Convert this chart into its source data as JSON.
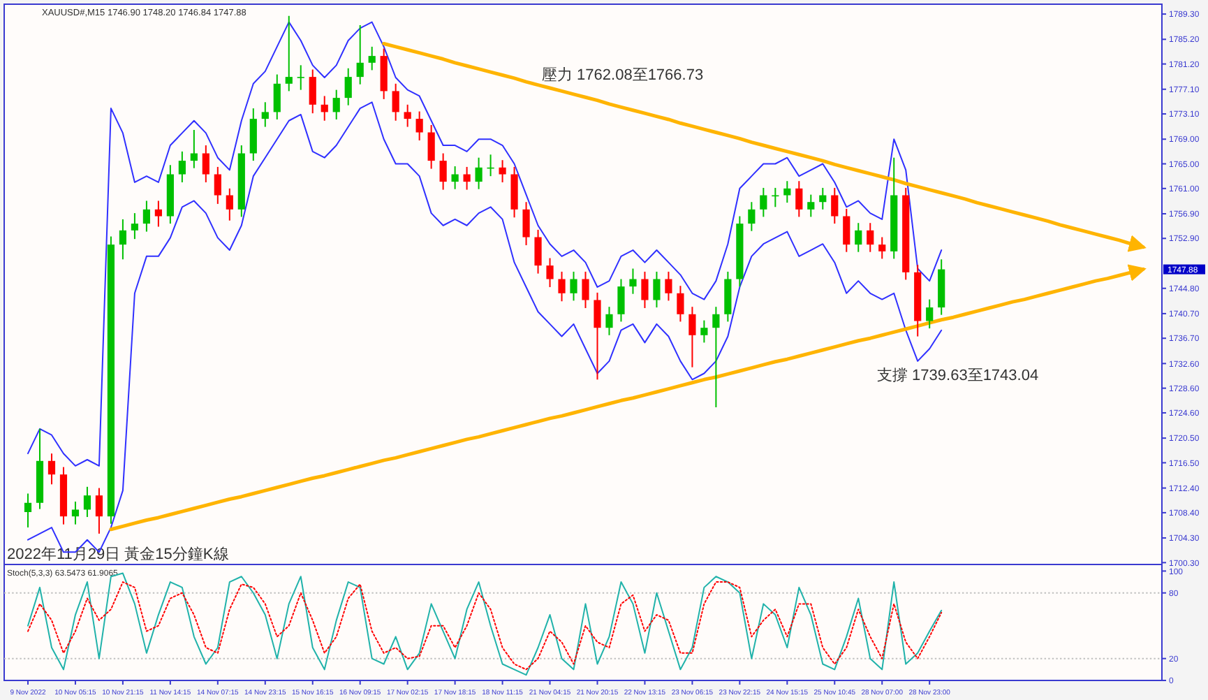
{
  "chart_data": [
    {
      "type": "candlestick",
      "title": "2022年11月29日 黃金15分鐘K線",
      "annotations": [
        "XAUUSD#,M15 1746.90 1748.20 1746.84 1747.88",
        "壓力 1762.08至1766.73",
        "支撐 1739.63至1743.04",
        "1747.88"
      ],
      "categories": [
        null,
        null,
        null,
        null,
        null,
        null,
        null,
        null,
        null,
        null,
        null,
        null,
        null,
        null,
        null,
        null,
        null,
        null,
        null,
        null,
        null,
        null,
        null,
        null,
        null,
        null,
        null,
        null,
        null,
        null,
        null,
        null,
        null,
        null,
        null,
        null,
        null,
        null,
        null,
        null,
        null,
        null,
        null,
        null,
        null,
        null,
        null,
        null,
        null,
        null,
        null,
        null,
        null,
        null,
        null,
        null,
        null,
        null,
        null,
        null,
        null,
        null,
        null,
        null,
        null,
        null,
        null,
        null,
        null,
        null,
        null,
        null,
        null,
        null,
        null,
        null,
        null,
        null,
        null,
        null,
        null,
        null,
        null,
        null,
        null,
        null,
        null,
        null,
        null,
        null,
        null,
        null,
        null,
        null,
        null,
        null
      ],
      "ohlc": [
        [
          1708.5,
          1711.5,
          1706.0,
          1710.0
        ],
        [
          1710.0,
          1722.0,
          1709.0,
          1716.8
        ],
        [
          1716.8,
          1718.0,
          1713.0,
          1714.6
        ],
        [
          1714.6,
          1715.8,
          1706.5,
          1707.8
        ],
        [
          1707.8,
          1710.2,
          1706.5,
          1708.9
        ],
        [
          1708.9,
          1712.6,
          1707.7,
          1711.2
        ],
        [
          1711.2,
          1712.4,
          1705.0,
          1707.8
        ],
        [
          1707.8,
          1753.2,
          1706.6,
          1751.9
        ],
        [
          1751.9,
          1756.0,
          1749.5,
          1754.2
        ],
        [
          1754.2,
          1757.0,
          1752.8,
          1755.3
        ],
        [
          1755.3,
          1759.0,
          1754.0,
          1757.6
        ],
        [
          1757.6,
          1759.0,
          1754.8,
          1756.5
        ],
        [
          1756.5,
          1764.8,
          1755.3,
          1763.3
        ],
        [
          1763.3,
          1767.0,
          1762.0,
          1765.5
        ],
        [
          1765.5,
          1770.5,
          1764.3,
          1766.7
        ],
        [
          1766.7,
          1768.0,
          1762.0,
          1763.3
        ],
        [
          1763.3,
          1764.5,
          1758.5,
          1759.9
        ],
        [
          1759.9,
          1761.0,
          1755.8,
          1757.6
        ],
        [
          1757.6,
          1768.0,
          1756.4,
          1766.7
        ],
        [
          1766.7,
          1774.0,
          1765.5,
          1772.3
        ],
        [
          1772.3,
          1775.0,
          1771.0,
          1773.4
        ],
        [
          1773.4,
          1779.5,
          1772.2,
          1778.0
        ],
        [
          1778.0,
          1789.0,
          1776.8,
          1779.1
        ],
        [
          1779.1,
          1781.0,
          1777.0,
          1779.1
        ],
        [
          1779.1,
          1780.3,
          1773.2,
          1774.6
        ],
        [
          1774.6,
          1776.0,
          1772.0,
          1773.4
        ],
        [
          1773.4,
          1777.0,
          1772.2,
          1775.7
        ],
        [
          1775.7,
          1780.5,
          1774.5,
          1779.1
        ],
        [
          1779.1,
          1787.5,
          1777.9,
          1781.4
        ],
        [
          1781.4,
          1784.0,
          1780.2,
          1782.5
        ],
        [
          1782.5,
          1783.7,
          1775.5,
          1776.8
        ],
        [
          1776.8,
          1778.0,
          1772.0,
          1773.4
        ],
        [
          1773.4,
          1774.6,
          1771.0,
          1772.3
        ],
        [
          1772.3,
          1773.5,
          1768.8,
          1770.1
        ],
        [
          1770.1,
          1771.3,
          1764.2,
          1765.5
        ],
        [
          1765.5,
          1766.7,
          1760.8,
          1762.1
        ],
        [
          1762.1,
          1764.6,
          1760.9,
          1763.3
        ],
        [
          1763.3,
          1764.5,
          1760.8,
          1762.1
        ],
        [
          1762.1,
          1766.0,
          1760.9,
          1764.4
        ],
        [
          1764.4,
          1766.5,
          1763.0,
          1764.4
        ],
        [
          1764.4,
          1765.6,
          1762.0,
          1763.3
        ],
        [
          1763.3,
          1764.5,
          1756.3,
          1757.6
        ],
        [
          1757.6,
          1758.8,
          1751.8,
          1753.1
        ],
        [
          1753.1,
          1754.3,
          1747.2,
          1748.5
        ],
        [
          1748.5,
          1749.7,
          1745.0,
          1746.3
        ],
        [
          1746.3,
          1747.5,
          1742.7,
          1744.0
        ],
        [
          1744.0,
          1747.5,
          1742.8,
          1746.3
        ],
        [
          1746.3,
          1747.5,
          1741.6,
          1742.9
        ],
        [
          1742.9,
          1744.1,
          1730.0,
          1738.4
        ],
        [
          1738.4,
          1741.8,
          1737.2,
          1740.6
        ],
        [
          1740.6,
          1746.3,
          1739.4,
          1745.1
        ],
        [
          1745.1,
          1748.0,
          1743.9,
          1746.3
        ],
        [
          1746.3,
          1747.5,
          1741.6,
          1742.9
        ],
        [
          1742.9,
          1747.5,
          1741.7,
          1746.3
        ],
        [
          1746.3,
          1747.5,
          1742.8,
          1744.0
        ],
        [
          1744.0,
          1745.2,
          1739.4,
          1740.6
        ],
        [
          1740.6,
          1741.8,
          1732.0,
          1737.2
        ],
        [
          1737.2,
          1739.6,
          1736.0,
          1738.4
        ],
        [
          1738.4,
          1741.8,
          1725.5,
          1740.6
        ],
        [
          1740.6,
          1747.5,
          1739.4,
          1746.3
        ],
        [
          1746.3,
          1756.5,
          1745.1,
          1755.3
        ],
        [
          1755.3,
          1758.8,
          1754.1,
          1757.6
        ],
        [
          1757.6,
          1761.1,
          1756.4,
          1759.9
        ],
        [
          1759.9,
          1761.1,
          1758.0,
          1759.9
        ],
        [
          1759.9,
          1762.2,
          1758.7,
          1761.0
        ],
        [
          1761.0,
          1762.2,
          1756.4,
          1757.6
        ],
        [
          1757.6,
          1760.0,
          1756.4,
          1758.8
        ],
        [
          1758.8,
          1761.1,
          1757.6,
          1759.9
        ],
        [
          1759.9,
          1761.1,
          1755.3,
          1756.5
        ],
        [
          1756.5,
          1757.7,
          1750.7,
          1751.9
        ],
        [
          1751.9,
          1755.4,
          1750.7,
          1754.2
        ],
        [
          1754.2,
          1755.4,
          1750.7,
          1751.9
        ],
        [
          1751.9,
          1753.1,
          1749.6,
          1750.8
        ],
        [
          1750.8,
          1766.0,
          1749.6,
          1759.9
        ],
        [
          1759.9,
          1761.1,
          1746.2,
          1747.4
        ],
        [
          1747.4,
          1748.6,
          1737.0,
          1739.5
        ],
        [
          1739.5,
          1743.0,
          1738.3,
          1741.7
        ],
        [
          1741.7,
          1749.5,
          1740.5,
          1747.88
        ],
        null,
        null,
        null,
        null,
        null,
        null,
        null,
        null,
        null,
        null,
        null,
        null,
        null,
        null,
        null,
        null,
        null,
        null
      ],
      "colors": [
        "#00c000",
        "#00c000",
        "#ff0000",
        "#ff0000",
        "#00c000",
        "#00c000",
        "#ff0000",
        "#00c000",
        "#00c000",
        "#00c000",
        "#00c000",
        "#ff0000",
        "#00c000",
        "#00c000",
        "#00c000",
        "#ff0000",
        "#ff0000",
        "#ff0000",
        "#00c000",
        "#00c000",
        "#00c000",
        "#00c000",
        "#00c000",
        "#00c000",
        "#ff0000",
        "#ff0000",
        "#00c000",
        "#00c000",
        "#00c000",
        "#00c000",
        "#ff0000",
        "#ff0000",
        "#ff0000",
        "#ff0000",
        "#ff0000",
        "#ff0000",
        "#00c000",
        "#ff0000",
        "#00c000",
        "#00c000",
        "#ff0000",
        "#ff0000",
        "#ff0000",
        "#ff0000",
        "#ff0000",
        "#ff0000",
        "#00c000",
        "#ff0000",
        "#ff0000",
        "#00c000",
        "#00c000",
        "#00c000",
        "#ff0000",
        "#00c000",
        "#ff0000",
        "#ff0000",
        "#ff0000",
        "#00c000",
        "#00c000",
        "#00c000",
        "#00c000",
        "#00c000",
        "#00c000",
        "#00c000",
        "#00c000",
        "#ff0000",
        "#00c000",
        "#00c000",
        "#ff0000",
        "#ff0000",
        "#00c000",
        "#ff0000",
        "#ff0000",
        "#00c000",
        "#ff0000",
        "#ff0000",
        "#00c000",
        "#00c000",
        null,
        null,
        null,
        null,
        null,
        null,
        null,
        null,
        null,
        null,
        null,
        null,
        null,
        null,
        null,
        null,
        null,
        null
      ],
      "series": [
        {
          "type": "line",
          "color": "#3030ff",
          "values": [
            1718,
            1722,
            1721,
            1718,
            1716,
            1717,
            1716,
            1774,
            1770,
            1762,
            1763,
            1762,
            1768,
            1770,
            1772,
            1770,
            1766,
            1764,
            1772,
            1778,
            1780,
            1784,
            1788,
            1785,
            1781,
            1779,
            1781,
            1785,
            1787,
            1788,
            1784,
            1779,
            1777,
            1776,
            1772,
            1768,
            1768,
            1767,
            1769,
            1769,
            1768,
            1765,
            1760,
            1755,
            1752,
            1750,
            1751,
            1749,
            1745,
            1746,
            1750,
            1751,
            1749,
            1751,
            1749,
            1747,
            1744,
            1743,
            1746,
            1752,
            1761,
            1763,
            1765,
            1765,
            1766,
            1763,
            1764,
            1765,
            1762,
            1758,
            1759,
            1757,
            1756,
            1769,
            1764,
            1748,
            1746,
            1751,
            null,
            null,
            null,
            null,
            null,
            null,
            null,
            null,
            null,
            null,
            null,
            null,
            null,
            null,
            null,
            null,
            null,
            null
          ]
        },
        {
          "type": "line",
          "color": "#3030ff",
          "values": [
            1704,
            1705,
            1706,
            1702,
            1702,
            1704,
            1702,
            1706,
            1712,
            1744,
            1750,
            1750,
            1753,
            1758,
            1759,
            1757,
            1753,
            1751,
            1755,
            1763,
            1766,
            1769,
            1772,
            1773,
            1767,
            1766,
            1768,
            1771,
            1774,
            1775,
            1769,
            1765,
            1765,
            1763,
            1757,
            1755,
            1756,
            1755,
            1757,
            1758,
            1756,
            1749,
            1745,
            1741,
            1739,
            1737,
            1739,
            1735,
            1731,
            1733,
            1738,
            1739,
            1736,
            1739,
            1737,
            1733,
            1730,
            1731,
            1733,
            1737,
            1745,
            1750,
            1752,
            1753,
            1754,
            1750,
            1751,
            1752,
            1749,
            1744,
            1746,
            1744,
            1743,
            1744,
            1738,
            1733,
            1735,
            1738,
            null,
            null,
            null,
            null,
            null,
            null,
            null,
            null,
            null,
            null,
            null,
            null,
            null,
            null,
            null,
            null,
            null,
            null
          ]
        },
        {
          "type": "line",
          "color": "#ffb400",
          "values": [
            null,
            null,
            null,
            null,
            null,
            null,
            null,
            null,
            null,
            null,
            null,
            null,
            null,
            null,
            null,
            null,
            null,
            null,
            null,
            null,
            null,
            null,
            null,
            null,
            null,
            null,
            null,
            null,
            null,
            null,
            1784.5,
            1784.0,
            1783.5,
            1783.0,
            1782.5,
            1782.0,
            1781.4,
            1780.9,
            1780.4,
            1779.9,
            1779.4,
            1778.9,
            1778.3,
            1777.8,
            1777.3,
            1776.8,
            1776.3,
            1775.8,
            1775.3,
            1774.7,
            1774.2,
            1773.7,
            1773.2,
            1772.7,
            1772.2,
            1771.6,
            1771.1,
            1770.6,
            1770.1,
            1769.6,
            1769.1,
            1768.5,
            1768.0,
            1767.5,
            1767.0,
            1766.5,
            1766.0,
            1765.5,
            1764.9,
            1764.4,
            1763.9,
            1763.4,
            1762.9,
            1762.4,
            1761.8,
            1761.3,
            1760.8,
            1760.3,
            1759.8,
            1759.3,
            1758.7,
            1758.2,
            1757.7,
            1757.2,
            1756.7,
            1756.2,
            1755.7,
            1755.1,
            1754.6,
            1754.1,
            1753.6,
            1753.1,
            1752.6,
            1752.0,
            1751.5,
            null
          ]
        },
        {
          "type": "line",
          "color": "#ffb400",
          "values": [
            null,
            null,
            null,
            null,
            null,
            null,
            null,
            1705.7,
            1706.2,
            1706.7,
            1707.2,
            1707.6,
            1708.1,
            1708.6,
            1709.1,
            1709.6,
            1710.1,
            1710.6,
            1711.0,
            1711.5,
            1712.0,
            1712.5,
            1713.0,
            1713.5,
            1714.0,
            1714.4,
            1714.9,
            1715.4,
            1715.9,
            1716.4,
            1716.9,
            1717.3,
            1717.8,
            1718.3,
            1718.8,
            1719.3,
            1719.8,
            1720.3,
            1720.7,
            1721.2,
            1721.7,
            1722.2,
            1722.7,
            1723.2,
            1723.7,
            1724.1,
            1724.6,
            1725.1,
            1725.6,
            1726.1,
            1726.6,
            1727.0,
            1727.5,
            1728.0,
            1728.5,
            1729.0,
            1729.5,
            1730.0,
            1730.4,
            1730.9,
            1731.4,
            1731.9,
            1732.4,
            1732.9,
            1733.3,
            1733.8,
            1734.3,
            1734.8,
            1735.3,
            1735.8,
            1736.3,
            1736.7,
            1737.2,
            1737.7,
            1738.2,
            1738.7,
            1739.2,
            1739.7,
            1740.1,
            1740.6,
            1741.1,
            1741.6,
            1742.1,
            1742.6,
            1743.0,
            1743.5,
            1744.0,
            1744.5,
            1745.0,
            1745.5,
            1746.0,
            1746.4,
            1746.9,
            1747.4,
            1747.9,
            null
          ]
        }
      ],
      "ylim": [
        1700.0,
        1790.9
      ],
      "yticks": [
        {
          "value": 1789.3,
          "label": "1789.30"
        },
        {
          "value": 1785.2,
          "label": "1785.20"
        },
        {
          "value": 1781.2,
          "label": "1781.20"
        },
        {
          "value": 1777.1,
          "label": "1777.10"
        },
        {
          "value": 1773.1,
          "label": "1773.10"
        },
        {
          "value": 1769.0,
          "label": "1769.00"
        },
        {
          "value": 1765.0,
          "label": "1765.00"
        },
        {
          "value": 1761.0,
          "label": "1761.00"
        },
        {
          "value": 1756.9,
          "label": "1756.90"
        },
        {
          "value": 1752.9,
          "label": "1752.90"
        },
        {
          "value": 1744.8,
          "label": "1744.80"
        },
        {
          "value": 1740.7,
          "label": "1740.70"
        },
        {
          "value": 1736.7,
          "label": "1736.70"
        },
        {
          "value": 1732.6,
          "label": "1732.60"
        },
        {
          "value": 1728.6,
          "label": "1728.60"
        },
        {
          "value": 1724.6,
          "label": "1724.60"
        },
        {
          "value": 1720.5,
          "label": "1720.50"
        },
        {
          "value": 1716.5,
          "label": "1716.50"
        },
        {
          "value": 1712.4,
          "label": "1712.40"
        },
        {
          "value": 1708.4,
          "label": "1708.40"
        },
        {
          "value": 1704.3,
          "label": "1704.30"
        },
        {
          "value": 1700.3,
          "label": "1700.30"
        }
      ],
      "tick_labels": "y"
    },
    {
      "type": "line",
      "title": "Stoch(5,3,3) 63.5473 61.9065",
      "categories": [
        "9 Nov 2022",
        null,
        null,
        null,
        "10 Nov 05:15",
        null,
        null,
        null,
        "10 Nov 21:15",
        null,
        null,
        null,
        "11 Nov 14:15",
        null,
        null,
        null,
        "14 Nov 07:15",
        null,
        null,
        null,
        "14 Nov 23:15",
        null,
        null,
        null,
        "15 Nov 16:15",
        null,
        null,
        null,
        "16 Nov 09:15",
        null,
        null,
        null,
        "17 Nov 02:15",
        null,
        null,
        null,
        "17 Nov 18:15",
        null,
        null,
        null,
        "18 Nov 11:15",
        null,
        null,
        null,
        "21 Nov 04:15",
        null,
        null,
        null,
        "21 Nov 20:15",
        null,
        null,
        null,
        "22 Nov 13:15",
        null,
        null,
        null,
        "23 Nov 06:15",
        null,
        null,
        null,
        "23 Nov 22:15",
        null,
        null,
        null,
        "24 Nov 15:15",
        null,
        null,
        null,
        "25 Nov 10:45",
        null,
        null,
        null,
        "28 Nov 07:00",
        null,
        null,
        null,
        "28 Nov 23:00",
        null,
        null,
        null,
        null,
        null,
        null,
        null,
        null,
        null,
        null,
        null,
        null,
        null,
        null,
        null,
        null,
        null,
        null,
        null
      ],
      "series": [
        {
          "color": "#20b2aa",
          "line_style": "solid",
          "values": [
            50,
            85,
            30,
            10,
            60,
            90,
            20,
            95,
            98,
            70,
            25,
            60,
            90,
            85,
            40,
            15,
            30,
            90,
            95,
            80,
            60,
            20,
            70,
            95,
            30,
            10,
            55,
            90,
            85,
            20,
            15,
            40,
            10,
            25,
            70,
            45,
            20,
            65,
            90,
            50,
            15,
            10,
            5,
            30,
            60,
            20,
            10,
            70,
            15,
            40,
            90,
            70,
            25,
            80,
            45,
            10,
            30,
            85,
            95,
            90,
            80,
            20,
            70,
            60,
            30,
            85,
            60,
            15,
            10,
            40,
            75,
            20,
            10,
            90,
            15,
            25,
            45,
            64,
            null,
            null,
            null,
            null,
            null,
            null,
            null,
            null,
            null,
            null,
            null,
            null,
            null,
            null,
            null,
            null,
            null,
            null
          ]
        },
        {
          "color": "#ff0000",
          "line_style": "dotted",
          "values": [
            45,
            70,
            55,
            25,
            45,
            75,
            55,
            65,
            90,
            85,
            45,
            50,
            75,
            80,
            60,
            30,
            25,
            65,
            88,
            85,
            70,
            40,
            50,
            80,
            55,
            25,
            40,
            75,
            88,
            45,
            25,
            30,
            20,
            22,
            50,
            50,
            30,
            50,
            80,
            65,
            30,
            15,
            10,
            20,
            45,
            35,
            15,
            50,
            35,
            30,
            70,
            78,
            45,
            60,
            55,
            25,
            25,
            70,
            90,
            90,
            85,
            40,
            55,
            65,
            40,
            70,
            70,
            30,
            15,
            30,
            65,
            40,
            20,
            70,
            35,
            20,
            40,
            62,
            null,
            null,
            null,
            null,
            null,
            null,
            null,
            null,
            null,
            null,
            null,
            null,
            null,
            null,
            null,
            null,
            null,
            null
          ]
        }
      ],
      "ref_lines": [
        {
          "axis": "y",
          "value": 20,
          "color": "#c0c0c0",
          "line_style": "dotted"
        },
        {
          "axis": "y",
          "value": 80,
          "color": "#c0c0c0",
          "line_style": "dotted"
        }
      ],
      "ylim": [
        0,
        106
      ],
      "yticks": [
        0,
        20,
        80,
        100
      ]
    }
  ]
}
